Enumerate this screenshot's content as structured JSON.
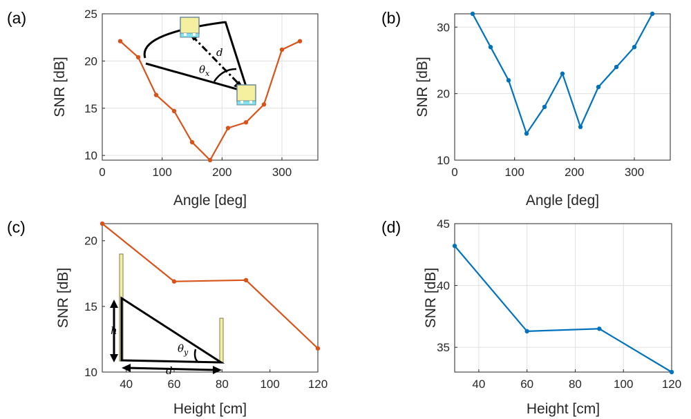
{
  "panel_labels": [
    "(a)",
    "(b)",
    "(c)",
    "(d)"
  ],
  "inset": {
    "a_symbols": [
      "d",
      "θ",
      "x"
    ],
    "c_symbols": [
      "h",
      "d",
      "θ",
      "y"
    ]
  },
  "colors": {
    "orange": "#D95319",
    "blue": "#0072BD",
    "antenna_fill": "#F5F0A0",
    "antenna_base": "#7FE3F0"
  },
  "chart_data": [
    {
      "type": "line",
      "panel": "(a)",
      "xlabel": "Angle [deg]",
      "ylabel": "SNR [dB]",
      "xlim": [
        0,
        360
      ],
      "ylim": [
        9.5,
        25
      ],
      "xticks": [
        0,
        100,
        200,
        300
      ],
      "yticks": [
        10,
        15,
        20,
        25
      ],
      "grid": true,
      "color": "#D95319",
      "x": [
        30,
        60,
        90,
        120,
        150,
        180,
        210,
        240,
        270,
        300,
        330
      ],
      "y": [
        22.1,
        20.4,
        16.4,
        14.7,
        11.4,
        9.5,
        12.9,
        13.5,
        15.4,
        21.2,
        22.1
      ]
    },
    {
      "type": "line",
      "panel": "(b)",
      "xlabel": "Angle [deg]",
      "ylabel": "SNR [dB]",
      "xlim": [
        0,
        360
      ],
      "ylim": [
        10,
        32
      ],
      "xticks": [
        0,
        100,
        200,
        300
      ],
      "yticks": [
        10,
        20,
        30
      ],
      "grid": true,
      "color": "#0072BD",
      "x": [
        30,
        60,
        90,
        120,
        150,
        180,
        210,
        240,
        270,
        300,
        330
      ],
      "y": [
        32,
        27,
        22,
        14,
        18,
        23,
        15,
        21,
        24,
        27,
        32
      ]
    },
    {
      "type": "line",
      "panel": "(c)",
      "xlabel": "Height [cm]",
      "ylabel": "SNR [dB]",
      "xlim": [
        30,
        120
      ],
      "ylim": [
        10,
        21.3
      ],
      "xticks": [
        40,
        60,
        80,
        100,
        120
      ],
      "yticks": [
        10,
        15,
        20
      ],
      "grid": false,
      "color": "#D95319",
      "x": [
        30,
        60,
        90,
        120
      ],
      "y": [
        21.3,
        16.9,
        17.0,
        11.8
      ]
    },
    {
      "type": "line",
      "panel": "(d)",
      "xlabel": "Height [cm]",
      "ylabel": "SNR [dB]",
      "xlim": [
        30,
        120
      ],
      "ylim": [
        33,
        45
      ],
      "xticks": [
        40,
        60,
        80,
        100,
        120
      ],
      "yticks": [
        35,
        40,
        45
      ],
      "grid": true,
      "color": "#0072BD",
      "x": [
        30,
        60,
        90,
        120
      ],
      "y": [
        43.2,
        36.3,
        36.5,
        33.0
      ]
    }
  ]
}
